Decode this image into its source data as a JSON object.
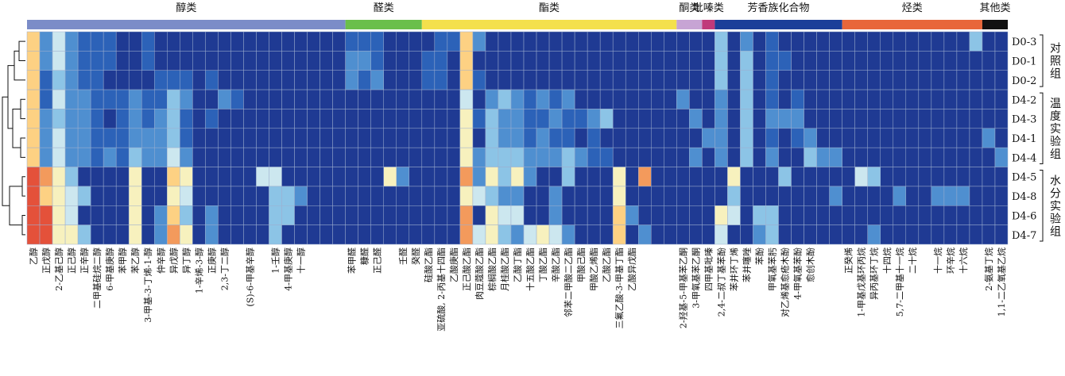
{
  "chart_data": {
    "type": "heatmap",
    "title": "",
    "xlabel": "",
    "ylabel": "",
    "categories": [
      {
        "name": "醇类",
        "count": 25,
        "color": "#7b8cc8"
      },
      {
        "name": "醛类",
        "count": 6,
        "color": "#6abf4b"
      },
      {
        "name": "酯类",
        "count": 20,
        "color": "#f4e04d"
      },
      {
        "name": "酮类",
        "count": 2,
        "color": "#c7a4d4"
      },
      {
        "name": "吡嗪类",
        "count": 1,
        "color": "#c0397a"
      },
      {
        "name": "芳香族化合物",
        "count": 10,
        "color": "#1c3f99"
      },
      {
        "name": "烃类",
        "count": 11,
        "color": "#e8663a"
      },
      {
        "name": "其他类",
        "count": 2,
        "color": "#111111"
      }
    ],
    "columns": [
      "乙醇",
      "正戊醇",
      "2-乙基己醇",
      "正己醇",
      "正辛醇",
      "二甲基硅烷二醇",
      "6-甲基庚醇",
      "苯甲醇",
      "苯乙醇",
      "3-甲基-3-丁烯-1-醇",
      "仲辛醇",
      "异戊醇",
      "异丁醇",
      "1-辛烯-3-醇",
      "正庚醇",
      "2,3-丁二醇",
      "",
      "(S)-6-甲基辛醇",
      "",
      "1-壬醇",
      "4-甲基庚醇",
      "十一醇",
      "",
      "",
      "",
      "苯甲醛",
      "糠醛",
      "正己醛",
      "",
      "壬醛",
      "癸醛",
      "硅酸乙酯",
      "亚硫酸, 2-丙基十四酯",
      "乙酸庚酯",
      "正己酸乙酯",
      "肉豆蔻酸乙酯",
      "棕榈酸乙酯",
      "月桂酸乙酯",
      "乙酸丁酯",
      "十五酸乙酯",
      "丁酸乙酯",
      "辛酸乙酯",
      "邻苯二甲酸二乙酯",
      "甲酸己酯",
      "甲酸乙烯酯",
      "乙酸乙酯",
      "三氟乙酸-3-甲基丁酯",
      "乙酸异戊酯",
      "",
      "",
      "",
      "2-羟基-5-甲基苯乙酮",
      "3-甲氧基苯乙酮",
      "四甲基吡嗪",
      "2,4-二叔丁基苯酚",
      "苯并环丁烯",
      "苯并噻唑",
      "苯酚",
      "甲氧基苯肟",
      "对乙烯基愈疮木酚",
      "4-甲氧基苯酚",
      "愈创木酚",
      "",
      "",
      "正癸烯",
      "1-甲基戊基环丙烷",
      "异丙基环丁烷",
      "十四烷",
      "5,7-二甲基十一烷",
      "二十烷",
      "",
      "十一烷",
      "环辛烷",
      "十六烷",
      "",
      "2-氨基丁烷",
      "1,1-二乙氧基乙烷"
    ],
    "rows": [
      "D0-3",
      "D0-1",
      "D0-2",
      "D4-2",
      "D4-3",
      "D4-1",
      "D4-4",
      "D4-5",
      "D4-8",
      "D4-6",
      "D4-7"
    ],
    "groups": [
      {
        "name": "对照组",
        "rows": [
          "D0-3",
          "D0-1",
          "D0-2"
        ]
      },
      {
        "name": "温度实验组",
        "rows": [
          "D4-2",
          "D4-3",
          "D4-1",
          "D4-4"
        ]
      },
      {
        "name": "水分实验组",
        "rows": [
          "D4-5",
          "D4-8",
          "D4-6",
          "D4-7"
        ]
      }
    ],
    "color_scale": {
      "range": [
        0,
        10
      ],
      "stops": [
        "#1f3a93",
        "#2c62b8",
        "#4f8fd0",
        "#8cc4e6",
        "#cce7ef",
        "#f7f1be",
        "#fdd183",
        "#f39a5c",
        "#e4513a",
        "#c0272d"
      ]
    },
    "values": [
      [
        7,
        2,
        4,
        2,
        1,
        1,
        1,
        0,
        0,
        1,
        0,
        0,
        0,
        0,
        0,
        0,
        0,
        0,
        0,
        0,
        0,
        0,
        0,
        0,
        0,
        1,
        1,
        1,
        0,
        0,
        0,
        0,
        1,
        1,
        7,
        2,
        0,
        0,
        0,
        0,
        0,
        0,
        0,
        0,
        0,
        0,
        0,
        0,
        0,
        0,
        0,
        0,
        0,
        0,
        3,
        0,
        2,
        0,
        1,
        0,
        0,
        0,
        0,
        0,
        0,
        0,
        0,
        0,
        0,
        0,
        0,
        0,
        0,
        0,
        3,
        0,
        0
      ],
      [
        7,
        2,
        4,
        2,
        1,
        1,
        1,
        0,
        0,
        1,
        0,
        0,
        0,
        0,
        0,
        0,
        0,
        0,
        0,
        0,
        0,
        0,
        0,
        0,
        0,
        2,
        2,
        1,
        0,
        0,
        0,
        1,
        1,
        0,
        7,
        0,
        0,
        0,
        0,
        0,
        0,
        0,
        0,
        0,
        0,
        0,
        0,
        0,
        0,
        0,
        0,
        0,
        0,
        0,
        3,
        0,
        3,
        0,
        1,
        1,
        0,
        0,
        0,
        0,
        0,
        0,
        0,
        0,
        0,
        0,
        0,
        0,
        0,
        0,
        0,
        0,
        0
      ],
      [
        7,
        1,
        3,
        2,
        1,
        1,
        0,
        0,
        0,
        0,
        1,
        1,
        1,
        0,
        1,
        0,
        0,
        0,
        0,
        0,
        0,
        0,
        0,
        0,
        0,
        2,
        1,
        2,
        0,
        0,
        0,
        1,
        1,
        0,
        7,
        1,
        0,
        0,
        0,
        0,
        0,
        0,
        0,
        0,
        0,
        0,
        0,
        0,
        0,
        0,
        0,
        0,
        0,
        0,
        3,
        0,
        3,
        0,
        1,
        0,
        0,
        0,
        0,
        0,
        0,
        0,
        0,
        0,
        0,
        0,
        0,
        0,
        0,
        0,
        0,
        0,
        0
      ],
      [
        7,
        1,
        4,
        2,
        2,
        1,
        1,
        1,
        2,
        1,
        1,
        3,
        2,
        0,
        0,
        2,
        1,
        0,
        0,
        0,
        0,
        0,
        0,
        0,
        0,
        0,
        0,
        0,
        0,
        0,
        0,
        0,
        0,
        0,
        4,
        0,
        2,
        3,
        2,
        1,
        2,
        1,
        2,
        0,
        0,
        0,
        0,
        0,
        0,
        0,
        0,
        2,
        0,
        0,
        2,
        0,
        3,
        0,
        1,
        0,
        1,
        0,
        0,
        0,
        0,
        0,
        0,
        0,
        0,
        0,
        0,
        0,
        0,
        0,
        0,
        0,
        0
      ],
      [
        7,
        2,
        3,
        2,
        2,
        1,
        0,
        1,
        2,
        1,
        2,
        3,
        1,
        0,
        1,
        0,
        0,
        0,
        0,
        0,
        0,
        0,
        0,
        0,
        0,
        0,
        0,
        0,
        0,
        0,
        0,
        0,
        0,
        0,
        5,
        1,
        3,
        2,
        2,
        1,
        1,
        2,
        1,
        1,
        2,
        3,
        0,
        0,
        0,
        0,
        0,
        0,
        2,
        0,
        2,
        0,
        3,
        0,
        2,
        2,
        2,
        0,
        0,
        0,
        0,
        0,
        0,
        0,
        0,
        0,
        0,
        0,
        0,
        0,
        0,
        0,
        0
      ],
      [
        7,
        2,
        4,
        2,
        2,
        1,
        1,
        1,
        2,
        2,
        2,
        3,
        1,
        0,
        0,
        0,
        0,
        0,
        0,
        0,
        0,
        0,
        0,
        0,
        0,
        0,
        0,
        0,
        0,
        0,
        0,
        0,
        0,
        0,
        5,
        0,
        3,
        2,
        2,
        1,
        2,
        1,
        1,
        0,
        1,
        0,
        0,
        0,
        0,
        0,
        0,
        0,
        0,
        2,
        2,
        0,
        3,
        0,
        1,
        0,
        1,
        2,
        0,
        0,
        0,
        0,
        0,
        0,
        0,
        0,
        0,
        0,
        0,
        0,
        0,
        2,
        0
      ],
      [
        7,
        2,
        4,
        2,
        2,
        1,
        2,
        1,
        3,
        2,
        2,
        4,
        2,
        0,
        0,
        0,
        0,
        0,
        0,
        0,
        0,
        0,
        0,
        0,
        0,
        0,
        0,
        0,
        0,
        0,
        0,
        0,
        0,
        0,
        5,
        2,
        3,
        3,
        3,
        2,
        2,
        2,
        3,
        2,
        1,
        1,
        0,
        0,
        0,
        0,
        0,
        0,
        2,
        0,
        2,
        0,
        3,
        0,
        2,
        0,
        0,
        3,
        2,
        2,
        0,
        0,
        0,
        0,
        0,
        0,
        0,
        0,
        0,
        0,
        0,
        0,
        2
      ],
      [
        9,
        8,
        6,
        3,
        0,
        0,
        0,
        0,
        5,
        0,
        0,
        7,
        5,
        0,
        0,
        0,
        0,
        0,
        4,
        4,
        0,
        0,
        0,
        0,
        0,
        0,
        0,
        0,
        5,
        2,
        0,
        0,
        0,
        0,
        8,
        2,
        5,
        3,
        5,
        2,
        0,
        0,
        3,
        0,
        0,
        0,
        5,
        0,
        8,
        0,
        0,
        0,
        0,
        0,
        0,
        6,
        0,
        0,
        0,
        3,
        0,
        0,
        0,
        0,
        0,
        4,
        3,
        0,
        0,
        0,
        0,
        0,
        0,
        0,
        0,
        0,
        0
      ],
      [
        9,
        7,
        5,
        4,
        3,
        0,
        0,
        0,
        5,
        0,
        0,
        6,
        4,
        0,
        0,
        0,
        0,
        0,
        0,
        3,
        3,
        2,
        0,
        0,
        0,
        0,
        0,
        0,
        0,
        0,
        0,
        0,
        0,
        0,
        6,
        4,
        3,
        2,
        2,
        0,
        0,
        2,
        0,
        0,
        0,
        0,
        6,
        0,
        0,
        0,
        0,
        0,
        0,
        0,
        0,
        3,
        0,
        0,
        0,
        0,
        0,
        0,
        0,
        2,
        0,
        0,
        0,
        0,
        2,
        0,
        0,
        2,
        2,
        2,
        0,
        0,
        0
      ],
      [
        9,
        9,
        6,
        4,
        0,
        0,
        0,
        0,
        5,
        0,
        2,
        7,
        3,
        0,
        2,
        0,
        0,
        0,
        0,
        3,
        3,
        0,
        0,
        0,
        0,
        0,
        0,
        0,
        0,
        0,
        0,
        0,
        0,
        0,
        8,
        0,
        5,
        4,
        4,
        0,
        0,
        2,
        0,
        0,
        0,
        0,
        7,
        2,
        0,
        0,
        0,
        0,
        0,
        0,
        6,
        4,
        0,
        3,
        3,
        0,
        0,
        0,
        0,
        0,
        0,
        0,
        0,
        0,
        0,
        0,
        0,
        0,
        0,
        0,
        0,
        0,
        0
      ],
      [
        9,
        9,
        6,
        6,
        3,
        0,
        0,
        0,
        5,
        0,
        2,
        8,
        5,
        0,
        2,
        0,
        0,
        0,
        0,
        3,
        0,
        0,
        0,
        0,
        0,
        0,
        0,
        0,
        0,
        0,
        0,
        0,
        0,
        0,
        8,
        4,
        6,
        3,
        2,
        4,
        5,
        4,
        2,
        0,
        0,
        0,
        7,
        0,
        2,
        0,
        0,
        0,
        0,
        0,
        4,
        0,
        0,
        2,
        3,
        0,
        0,
        0,
        0,
        0,
        0,
        0,
        2,
        0,
        0,
        0,
        0,
        0,
        0,
        0,
        0,
        0,
        0
      ]
    ]
  }
}
